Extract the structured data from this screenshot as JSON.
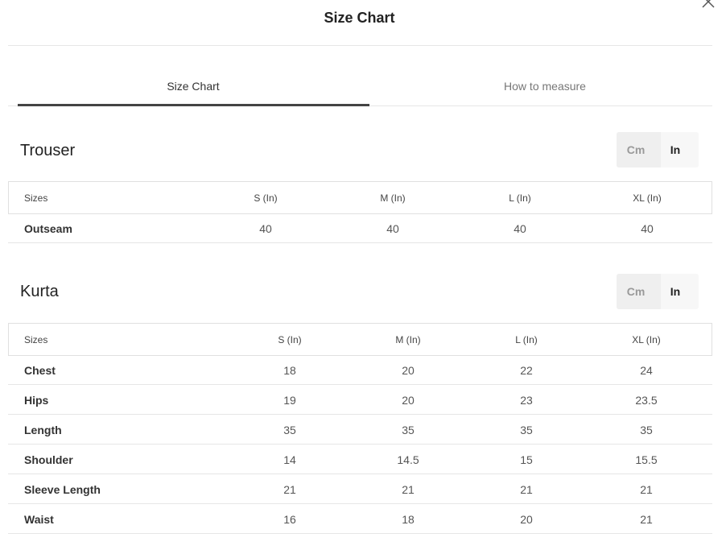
{
  "header": {
    "title": "Size Chart"
  },
  "tabs": [
    "Size Chart",
    "How to measure"
  ],
  "sections": [
    {
      "title": "Trouser",
      "units": [
        "Cm",
        "In"
      ],
      "table": {
        "headers": [
          "Sizes",
          "S (In)",
          "M (In)",
          "L (In)",
          "XL (In)"
        ],
        "rows": [
          [
            "Outseam",
            40,
            40,
            40,
            40
          ]
        ]
      }
    },
    {
      "title": "Kurta",
      "units": [
        "Cm",
        "In"
      ],
      "table": {
        "headers": [
          "Sizes",
          "S (In)",
          "M (In)",
          "L (In)",
          "XL (In)"
        ],
        "rows": [
          [
            "Chest",
            18,
            20,
            22,
            24
          ],
          [
            "Hips",
            19,
            20,
            23,
            23.5
          ],
          [
            "Length",
            35,
            35,
            35,
            35
          ],
          [
            "Shoulder",
            14,
            14.5,
            15,
            15.5
          ],
          [
            "Sleeve Length",
            21,
            21,
            21,
            21
          ],
          [
            "Waist",
            16,
            18,
            20,
            21
          ]
        ]
      }
    }
  ]
}
